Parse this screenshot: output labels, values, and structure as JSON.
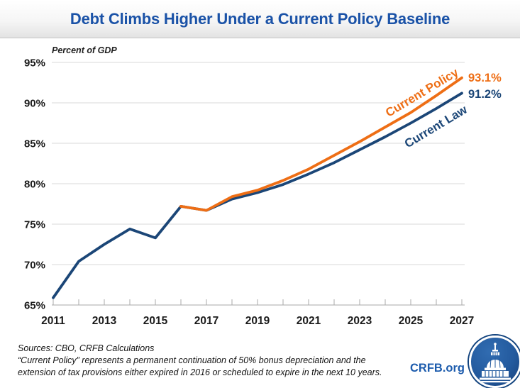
{
  "header": {
    "title": "Debt Climbs Higher Under a Current Policy Baseline"
  },
  "chart": {
    "axis_note": "Percent of GDP",
    "line_labels": {
      "current_policy": "Current Policy",
      "current_law": "Current Law"
    },
    "end_labels": {
      "current_policy": "93.1%",
      "current_law": "91.2%"
    }
  },
  "chart_data": {
    "type": "line",
    "title": "Debt Climbs Higher Under a Current Policy Baseline",
    "ylabel": "Percent of GDP",
    "xlabel": "",
    "ylim": [
      65,
      95
    ],
    "yticks": [
      65,
      70,
      75,
      80,
      85,
      90,
      95
    ],
    "ytick_labels": [
      "65%",
      "70%",
      "75%",
      "80%",
      "85%",
      "90%",
      "95%"
    ],
    "x": [
      2011,
      2012,
      2013,
      2014,
      2015,
      2016,
      2017,
      2018,
      2019,
      2020,
      2021,
      2022,
      2023,
      2024,
      2025,
      2026,
      2027
    ],
    "x_tick_labels": [
      "2011",
      "2013",
      "2015",
      "2017",
      "2019",
      "2021",
      "2023",
      "2025",
      "2027"
    ],
    "grid": "horizontal",
    "legend_position": "inline-rotated-labels",
    "series": [
      {
        "name": "Current Law",
        "color": "#1B4677",
        "end_label": "91.2%",
        "values": [
          65.9,
          70.4,
          72.5,
          74.4,
          73.3,
          77.2,
          76.7,
          78.1,
          78.9,
          79.9,
          81.2,
          82.6,
          84.2,
          85.8,
          87.5,
          89.3,
          91.2
        ]
      },
      {
        "name": "Current Policy",
        "color": "#EE6E15",
        "end_label": "93.1%",
        "values": [
          null,
          null,
          null,
          null,
          null,
          77.2,
          76.7,
          78.4,
          79.2,
          80.4,
          81.8,
          83.5,
          85.2,
          87.0,
          88.8,
          90.9,
          93.1
        ]
      }
    ]
  },
  "footer": {
    "source_line": "Sources: CBO, CRFB Calculations",
    "note_line_1": "“Current Policy” represents a permanent continuation of 50% bonus depreciation and the",
    "note_line_2": "extension of tax provisions either expired  in 2016 or scheduled to expire in the next 10 years.",
    "site": "CRFB.org"
  },
  "colors": {
    "title_blue": "#1A52A7",
    "current_policy_orange": "#EE6E15",
    "current_law_navy": "#1B4677",
    "gridline_gray": "#d9d9d9",
    "axis_gray": "#a8a8a8",
    "crfb_link_blue": "#1D5CAD",
    "logo_circle_blue": "#1c4d8d"
  }
}
